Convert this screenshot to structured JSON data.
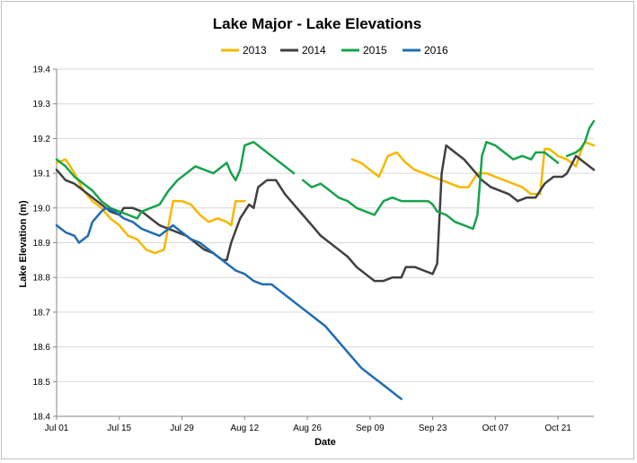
{
  "chart_data": {
    "type": "line",
    "title": "Lake Major - Lake Elevations",
    "xlabel": "Date",
    "ylabel": "Lake Elevation (m)",
    "ylim": [
      18.4,
      19.4
    ],
    "yticks": [
      "18.4",
      "18.5",
      "18.6",
      "18.7",
      "18.8",
      "18.9",
      "19.0",
      "19.1",
      "19.2",
      "19.3",
      "19.4"
    ],
    "xlim_days": [
      0,
      120
    ],
    "xticks": [
      {
        "label": "Jul 01",
        "day": 0
      },
      {
        "label": "Jul 15",
        "day": 14
      },
      {
        "label": "Jul 29",
        "day": 28
      },
      {
        "label": "Aug 12",
        "day": 42
      },
      {
        "label": "Aug 26",
        "day": 56
      },
      {
        "label": "Sep 09",
        "day": 70
      },
      {
        "label": "Sep 23",
        "day": 84
      },
      {
        "label": "Oct 07",
        "day": 98
      },
      {
        "label": "Oct 21",
        "day": 112
      }
    ],
    "legend_position": "top",
    "series": [
      {
        "name": "2013",
        "color": "#f5b800",
        "segments": [
          [
            [
              0,
              19.13
            ],
            [
              2,
              19.14
            ],
            [
              4,
              19.1
            ],
            [
              6,
              19.05
            ],
            [
              8,
              19.02
            ],
            [
              10,
              19.0
            ],
            [
              12,
              18.97
            ],
            [
              14,
              18.95
            ],
            [
              16,
              18.92
            ],
            [
              18,
              18.91
            ],
            [
              20,
              18.88
            ],
            [
              22,
              18.87
            ],
            [
              24,
              18.88
            ],
            [
              25,
              18.95
            ],
            [
              26,
              19.02
            ],
            [
              28,
              19.02
            ],
            [
              30,
              19.01
            ],
            [
              32,
              18.98
            ],
            [
              34,
              18.96
            ],
            [
              36,
              18.97
            ],
            [
              38,
              18.96
            ],
            [
              39,
              18.95
            ],
            [
              40,
              19.02
            ],
            [
              42,
              19.02
            ]
          ],
          [
            [
              66,
              19.14
            ],
            [
              68,
              19.13
            ],
            [
              70,
              19.11
            ],
            [
              72,
              19.09
            ],
            [
              74,
              19.15
            ],
            [
              76,
              19.16
            ],
            [
              78,
              19.13
            ],
            [
              80,
              19.11
            ],
            [
              82,
              19.1
            ],
            [
              84,
              19.09
            ],
            [
              86,
              19.08
            ],
            [
              88,
              19.07
            ],
            [
              90,
              19.06
            ],
            [
              92,
              19.06
            ],
            [
              94,
              19.1
            ],
            [
              96,
              19.1
            ],
            [
              98,
              19.09
            ],
            [
              100,
              19.08
            ],
            [
              102,
              19.07
            ],
            [
              104,
              19.06
            ],
            [
              106,
              19.04
            ],
            [
              108,
              19.04
            ],
            [
              109,
              19.17
            ],
            [
              110,
              19.17
            ],
            [
              112,
              19.15
            ],
            [
              114,
              19.14
            ],
            [
              116,
              19.12
            ],
            [
              117,
              19.16
            ],
            [
              118,
              19.19
            ],
            [
              120,
              19.18
            ]
          ]
        ]
      },
      {
        "name": "2014",
        "color": "#404040",
        "segments": [
          [
            [
              0,
              19.11
            ],
            [
              2,
              19.08
            ],
            [
              4,
              19.07
            ],
            [
              6,
              19.05
            ],
            [
              8,
              19.03
            ],
            [
              10,
              19.01
            ],
            [
              12,
              18.99
            ],
            [
              14,
              18.98
            ],
            [
              15,
              19.0
            ],
            [
              17,
              19.0
            ],
            [
              19,
              18.99
            ],
            [
              21,
              18.97
            ],
            [
              23,
              18.95
            ],
            [
              25,
              18.94
            ],
            [
              27,
              18.93
            ],
            [
              29,
              18.92
            ],
            [
              31,
              18.9
            ],
            [
              33,
              18.88
            ],
            [
              35,
              18.87
            ],
            [
              37,
              18.85
            ],
            [
              38,
              18.85
            ],
            [
              39,
              18.9
            ],
            [
              41,
              18.97
            ],
            [
              43,
              19.01
            ],
            [
              44,
              19.0
            ],
            [
              45,
              19.06
            ],
            [
              47,
              19.08
            ],
            [
              49,
              19.08
            ],
            [
              51,
              19.04
            ],
            [
              53,
              19.01
            ],
            [
              55,
              18.98
            ],
            [
              57,
              18.95
            ],
            [
              59,
              18.92
            ],
            [
              61,
              18.9
            ],
            [
              63,
              18.88
            ],
            [
              65,
              18.86
            ],
            [
              67,
              18.83
            ],
            [
              69,
              18.81
            ],
            [
              71,
              18.79
            ],
            [
              73,
              18.79
            ],
            [
              75,
              18.8
            ],
            [
              77,
              18.8
            ],
            [
              78,
              18.83
            ],
            [
              80,
              18.83
            ],
            [
              82,
              18.82
            ],
            [
              84,
              18.81
            ],
            [
              85,
              18.84
            ],
            [
              86,
              19.1
            ],
            [
              87,
              19.18
            ],
            [
              89,
              19.16
            ],
            [
              91,
              19.14
            ],
            [
              93,
              19.11
            ],
            [
              95,
              19.08
            ],
            [
              97,
              19.06
            ],
            [
              99,
              19.05
            ],
            [
              101,
              19.04
            ],
            [
              103,
              19.02
            ],
            [
              105,
              19.03
            ],
            [
              107,
              19.03
            ],
            [
              109,
              19.07
            ],
            [
              111,
              19.09
            ],
            [
              113,
              19.09
            ],
            [
              114,
              19.1
            ],
            [
              116,
              19.15
            ],
            [
              118,
              19.13
            ],
            [
              120,
              19.11
            ]
          ]
        ]
      },
      {
        "name": "2015",
        "color": "#17a34a",
        "segments": [
          [
            [
              0,
              19.14
            ],
            [
              2,
              19.12
            ],
            [
              4,
              19.09
            ],
            [
              6,
              19.07
            ],
            [
              8,
              19.05
            ],
            [
              10,
              19.02
            ],
            [
              12,
              19.0
            ],
            [
              14,
              18.99
            ],
            [
              16,
              18.98
            ],
            [
              18,
              18.97
            ],
            [
              19,
              18.99
            ],
            [
              21,
              19.0
            ],
            [
              23,
              19.01
            ],
            [
              25,
              19.05
            ],
            [
              27,
              19.08
            ],
            [
              29,
              19.1
            ],
            [
              31,
              19.12
            ],
            [
              33,
              19.11
            ],
            [
              35,
              19.1
            ],
            [
              37,
              19.12
            ],
            [
              38,
              19.13
            ],
            [
              39,
              19.1
            ],
            [
              40,
              19.08
            ],
            [
              41,
              19.11
            ],
            [
              42,
              19.18
            ],
            [
              44,
              19.19
            ],
            [
              46,
              19.17
            ],
            [
              48,
              19.15
            ],
            [
              50,
              19.13
            ],
            [
              52,
              19.11
            ],
            [
              53,
              19.1
            ]
          ],
          [
            [
              55,
              19.08
            ],
            [
              57,
              19.06
            ],
            [
              59,
              19.07
            ],
            [
              61,
              19.05
            ],
            [
              63,
              19.03
            ],
            [
              65,
              19.02
            ],
            [
              67,
              19.0
            ],
            [
              69,
              18.99
            ],
            [
              71,
              18.98
            ],
            [
              73,
              19.02
            ],
            [
              75,
              19.03
            ],
            [
              77,
              19.02
            ],
            [
              79,
              19.02
            ],
            [
              81,
              19.02
            ],
            [
              83,
              19.02
            ],
            [
              84,
              19.01
            ],
            [
              85,
              18.99
            ],
            [
              87,
              18.98
            ],
            [
              89,
              18.96
            ],
            [
              91,
              18.95
            ],
            [
              93,
              18.94
            ],
            [
              94,
              18.98
            ],
            [
              95,
              19.15
            ],
            [
              96,
              19.19
            ],
            [
              98,
              19.18
            ],
            [
              100,
              19.16
            ],
            [
              102,
              19.14
            ],
            [
              104,
              19.15
            ],
            [
              106,
              19.14
            ],
            [
              107,
              19.16
            ],
            [
              109,
              19.16
            ],
            [
              110,
              19.15
            ],
            [
              112,
              19.13
            ]
          ],
          [
            [
              114,
              19.15
            ],
            [
              116,
              19.16
            ],
            [
              117,
              19.17
            ],
            [
              118,
              19.19
            ],
            [
              119,
              19.23
            ],
            [
              120,
              19.25
            ]
          ]
        ]
      },
      {
        "name": "2016",
        "color": "#1f6db3",
        "segments": [
          [
            [
              0,
              18.95
            ],
            [
              2,
              18.93
            ],
            [
              4,
              18.92
            ],
            [
              5,
              18.9
            ],
            [
              7,
              18.92
            ],
            [
              8,
              18.96
            ],
            [
              10,
              18.99
            ],
            [
              11,
              19.0
            ],
            [
              13,
              18.99
            ],
            [
              15,
              18.97
            ],
            [
              17,
              18.96
            ],
            [
              19,
              18.94
            ],
            [
              21,
              18.93
            ],
            [
              23,
              18.92
            ],
            [
              24,
              18.93
            ],
            [
              26,
              18.95
            ],
            [
              28,
              18.93
            ],
            [
              30,
              18.91
            ],
            [
              32,
              18.9
            ],
            [
              34,
              18.88
            ],
            [
              36,
              18.86
            ],
            [
              38,
              18.84
            ],
            [
              40,
              18.82
            ],
            [
              42,
              18.81
            ],
            [
              44,
              18.79
            ],
            [
              46,
              18.78
            ],
            [
              48,
              18.78
            ],
            [
              50,
              18.76
            ],
            [
              52,
              18.74
            ],
            [
              54,
              18.72
            ],
            [
              56,
              18.7
            ],
            [
              58,
              18.68
            ],
            [
              60,
              18.66
            ],
            [
              62,
              18.63
            ],
            [
              64,
              18.6
            ],
            [
              66,
              18.57
            ],
            [
              68,
              18.54
            ],
            [
              70,
              18.52
            ],
            [
              72,
              18.5
            ],
            [
              74,
              18.48
            ],
            [
              76,
              18.46
            ],
            [
              77,
              18.45
            ]
          ]
        ]
      }
    ]
  }
}
